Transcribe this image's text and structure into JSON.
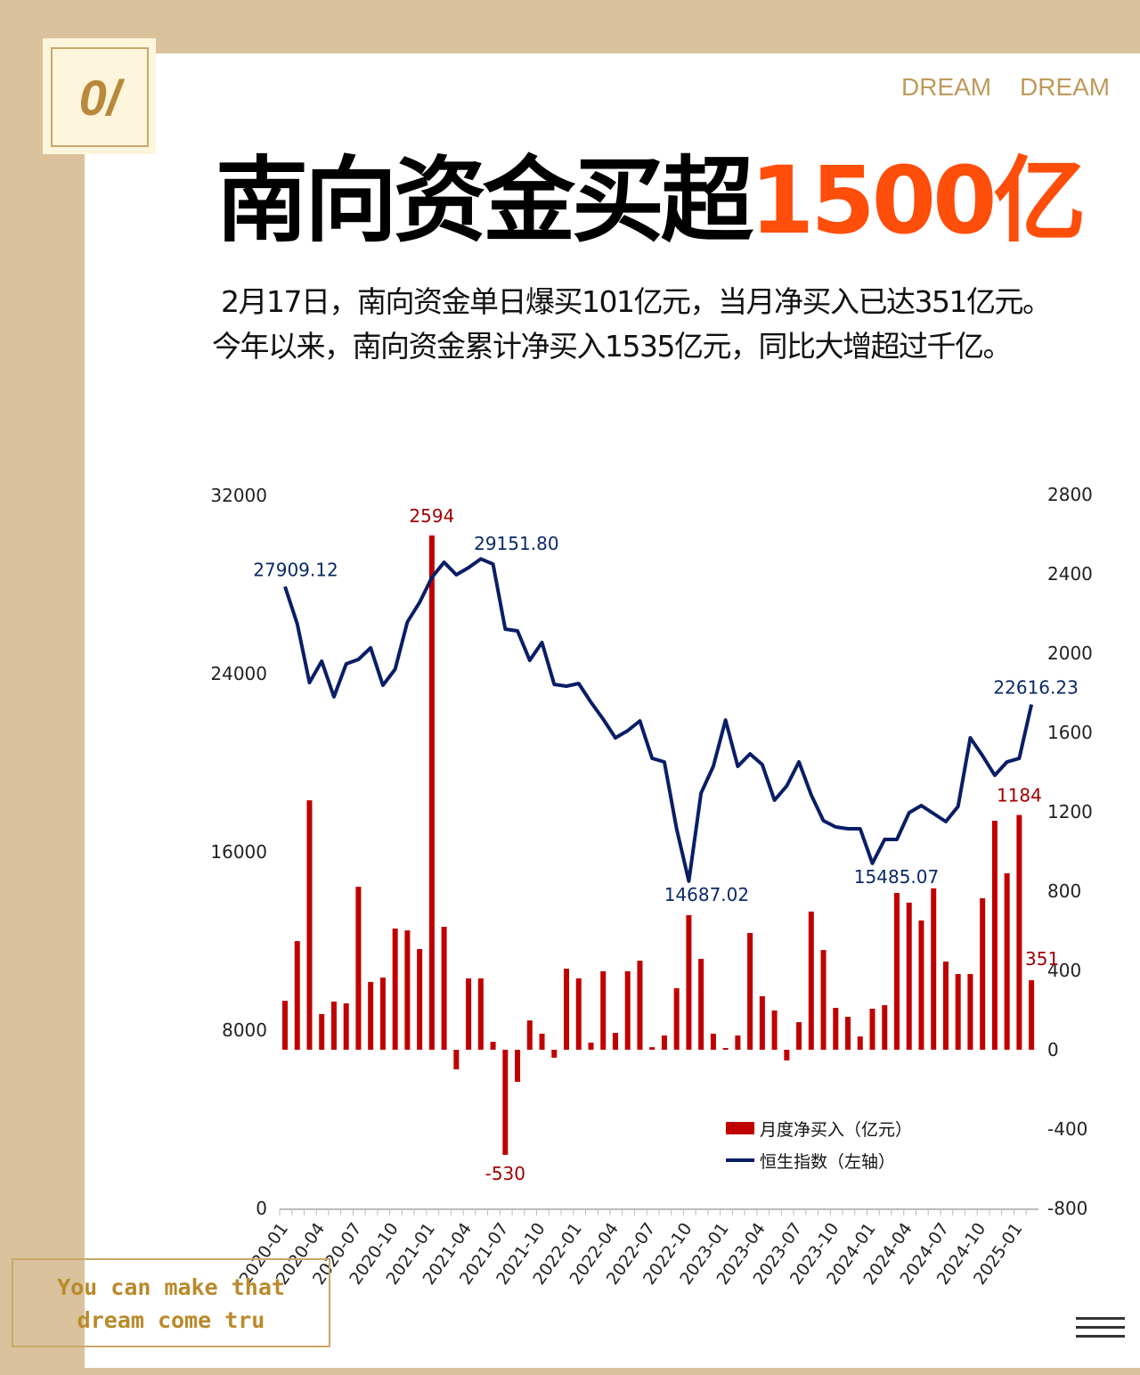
{
  "badge": {
    "text": "0/"
  },
  "header": {
    "tag1": "DREAM",
    "tag2": "DREAM",
    "title_main": "南向资金买超",
    "title_highlight": "1500亿",
    "title_highlight_color": "#ff4d0a"
  },
  "summary": {
    "line1": "2月17日，南向资金单日爆买101亿元，当月净买入已达351亿元。",
    "line2": "今年以来，南向资金累计净买入1535亿元，同比大增超过千亿。"
  },
  "watermark": {
    "line1": "You can make that",
    "line2": "dream come tru"
  },
  "menu_icon": "hamburger-icon",
  "chart_data": {
    "type": "bar+line",
    "legend": {
      "bar": "月度净买入（亿元）",
      "line": "恒生指数（左轴）",
      "placement": "bottom-right"
    },
    "colors": {
      "bar": "#c00000",
      "line": "#0a1e66"
    },
    "left_axis": {
      "ticks": [
        "0",
        "8000",
        "16000",
        "24000",
        "32000"
      ],
      "range": [
        0,
        32000
      ]
    },
    "right_axis": {
      "ticks": [
        "-800",
        "-400",
        "0",
        "400",
        "800",
        "1200",
        "1600",
        "2000",
        "2400",
        "2800"
      ],
      "range": [
        -800,
        2800
      ]
    },
    "x_tick_labels": [
      "2020-01",
      "2020-04",
      "2020-07",
      "2020-10",
      "2021-01",
      "2021-04",
      "2021-07",
      "2021-10",
      "2022-01",
      "2022-04",
      "2022-07",
      "2022-10",
      "2023-01",
      "2023-04",
      "2023-07",
      "2023-10",
      "2024-01",
      "2024-04",
      "2024-07",
      "2024-10",
      "2025-01"
    ],
    "x_start": "2020-01",
    "x_end": "2025-02",
    "series": [
      {
        "name": "月度净买入（亿元）",
        "axis": "right",
        "type": "bar",
        "values": [
          247,
          548,
          1258,
          180,
          243,
          234,
          822,
          342,
          364,
          611,
          602,
          508,
          2594,
          620,
          -99,
          360,
          360,
          40,
          -530,
          -162,
          148,
          81,
          -40,
          409,
          360,
          36,
          396,
          85,
          396,
          449,
          13,
          72,
          310,
          679,
          458,
          81,
          9,
          72,
          589,
          270,
          198,
          -54,
          139,
          697,
          503,
          211,
          166,
          67,
          207,
          225,
          791,
          742,
          652,
          814,
          445,
          382,
          382,
          764,
          1155,
          890,
          1184,
          351
        ]
      },
      {
        "name": "恒生指数（左轴）",
        "axis": "left",
        "type": "line",
        "values": [
          27909.12,
          26240,
          23600,
          24560,
          22960,
          24440,
          24640,
          25160,
          23480,
          24200,
          26320,
          27200,
          28320,
          29000,
          28440,
          28760,
          29151.8,
          28920,
          26000,
          25920,
          24600,
          25400,
          23520,
          23440,
          23560,
          22720,
          21960,
          21120,
          21440,
          21880,
          20200,
          20040,
          17040,
          14687.02,
          18640,
          19840,
          21920,
          19840,
          20400,
          19920,
          18320,
          18960,
          20040,
          18560,
          17400,
          17120,
          17040,
          17040,
          15485.07,
          16560,
          16560,
          17760,
          18080,
          17720,
          17360,
          18040,
          21120,
          20320,
          19440,
          20040,
          20200,
          22616.23
        ]
      }
    ],
    "annotations": {
      "line": [
        {
          "index": 0,
          "text": "27909.12"
        },
        {
          "index": 16,
          "text": "29151.80"
        },
        {
          "index": 33,
          "text": "14687.02"
        },
        {
          "index": 48,
          "text": "15485.07"
        },
        {
          "index": 61,
          "text": "22616.23"
        }
      ],
      "bar": [
        {
          "index": 12,
          "text": "2594"
        },
        {
          "index": 18,
          "text": "-530"
        },
        {
          "index": 60,
          "text": "1184"
        },
        {
          "index": 61,
          "text": "351"
        }
      ]
    }
  }
}
